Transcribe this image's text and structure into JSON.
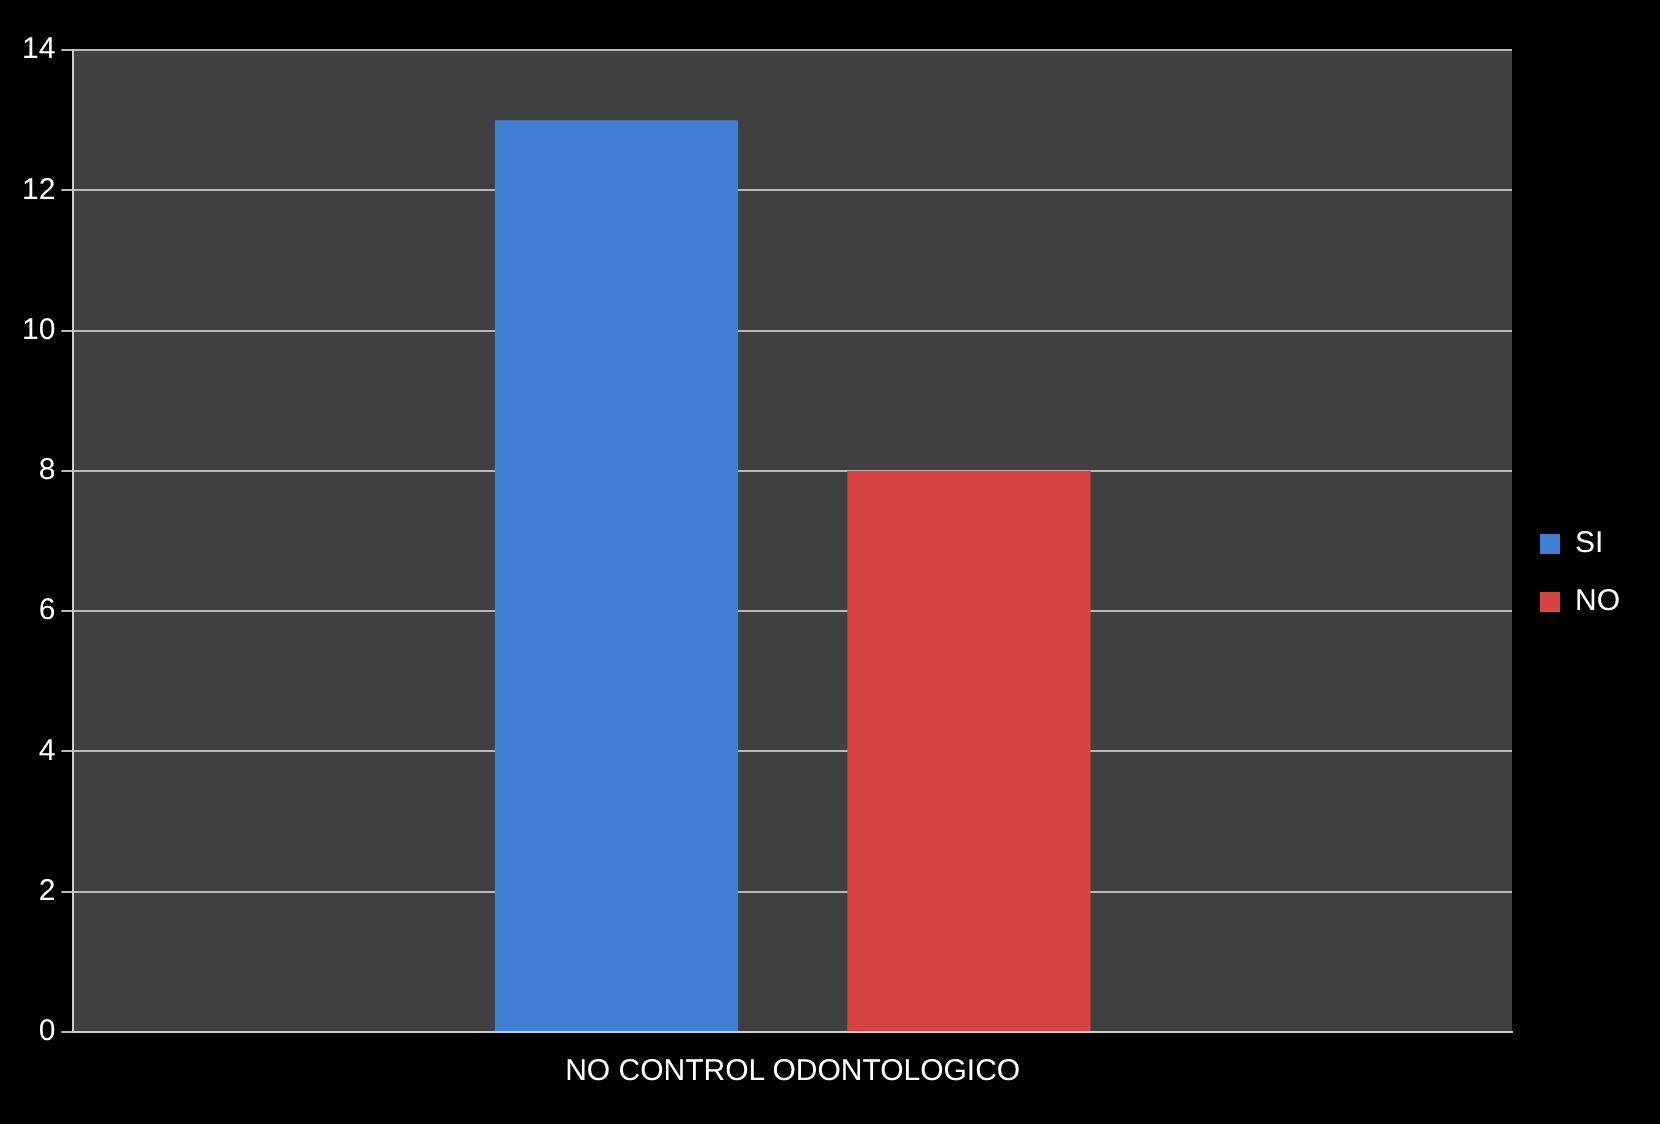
{
  "chart_data": {
    "type": "bar",
    "categories": [
      "NO CONTROL ODONTOLOGICO"
    ],
    "series": [
      {
        "name": "SI",
        "color": "#3f80d4",
        "values": [
          13
        ]
      },
      {
        "name": "NO",
        "color": "#d64444",
        "values": [
          8
        ]
      }
    ],
    "ylim": [
      0,
      14
    ],
    "yticks": [
      0,
      2,
      4,
      6,
      8,
      10,
      12,
      14
    ],
    "grid": "y",
    "legend": "right"
  }
}
